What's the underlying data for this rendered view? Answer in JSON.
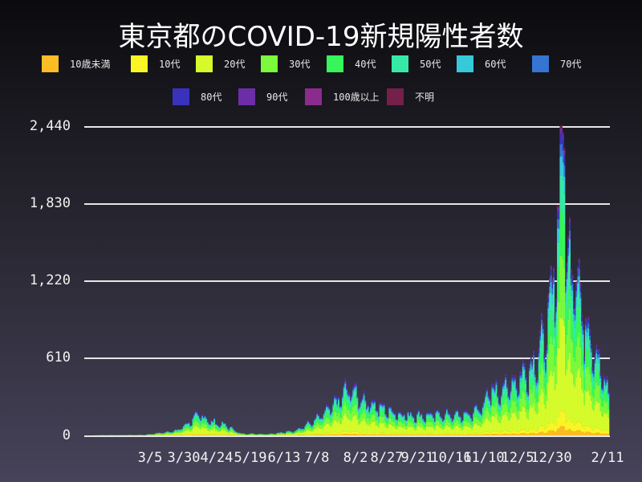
{
  "title": "東京都のCOVID-19新規陽性者数",
  "legend": [
    {
      "label": "10歳未満",
      "color": "#fbbc25"
    },
    {
      "label": "10代",
      "color": "#fbf526"
    },
    {
      "label": "20代",
      "color": "#d6fb2b"
    },
    {
      "label": "30代",
      "color": "#7cf93a"
    },
    {
      "label": "40代",
      "color": "#36f65b"
    },
    {
      "label": "50代",
      "color": "#36eaa6"
    },
    {
      "label": "60代",
      "color": "#36c9da"
    },
    {
      "label": "70代",
      "color": "#3575d1"
    },
    {
      "label": "80代",
      "color": "#3a32bd"
    },
    {
      "label": "90代",
      "color": "#6c2ea8"
    },
    {
      "label": "100歳以上",
      "color": "#8c2b8e"
    },
    {
      "label": "不明",
      "color": "#74204a"
    }
  ],
  "y_ticks": [
    "2,440",
    "1,830",
    "1,220",
    "610",
    "0"
  ],
  "x_ticks": [
    "3/5",
    "3/30",
    "4/24",
    "5/19",
    "6/13",
    "7/8",
    "8/2",
    "8/27",
    "9/21",
    "10/16",
    "11/10",
    "12/5",
    "12/30",
    "2/11"
  ],
  "chart_data": {
    "type": "bar",
    "stacked": true,
    "title": "東京都のCOVID-19新規陽性者数",
    "xlabel": "",
    "ylabel": "",
    "ylim": [
      0,
      2440
    ],
    "y_ticks": [
      0,
      610,
      1220,
      1830,
      2440
    ],
    "x_tick_labels": [
      "3/5",
      "3/30",
      "4/24",
      "5/19",
      "6/13",
      "7/8",
      "8/2",
      "8/27",
      "9/21",
      "10/16",
      "11/10",
      "12/5",
      "12/30",
      "2/11"
    ],
    "x_range": [
      "2020-01-24",
      "2021-02-11"
    ],
    "legend_position": "top",
    "grid": "horizontal",
    "series_names": [
      "10歳未満",
      "10代",
      "20代",
      "30代",
      "40代",
      "50代",
      "60代",
      "70代",
      "80代",
      "90代",
      "100歳以上",
      "不明"
    ],
    "weekly_total_samples": [
      {
        "week_start": "2020-03-01",
        "approx_daily_peak": 10
      },
      {
        "week_start": "2020-03-29",
        "approx_daily_peak": 143
      },
      {
        "week_start": "2020-04-12",
        "approx_daily_peak": 206
      },
      {
        "week_start": "2020-05-10",
        "approx_daily_peak": 30
      },
      {
        "week_start": "2020-06-28",
        "approx_daily_peak": 130
      },
      {
        "week_start": "2020-07-26",
        "approx_daily_peak": 472
      },
      {
        "week_start": "2020-08-23",
        "approx_daily_peak": 250
      },
      {
        "week_start": "2020-09-20",
        "approx_daily_peak": 230
      },
      {
        "week_start": "2020-10-18",
        "approx_daily_peak": 230
      },
      {
        "week_start": "2020-11-15",
        "approx_daily_peak": 530
      },
      {
        "week_start": "2020-12-13",
        "approx_daily_peak": 820
      },
      {
        "week_start": "2020-12-27",
        "approx_daily_peak": 1337
      },
      {
        "week_start": "2021-01-03",
        "approx_daily_peak": 2447
      },
      {
        "week_start": "2021-01-10",
        "approx_daily_peak": 1810
      },
      {
        "week_start": "2021-01-17",
        "approx_daily_peak": 1240
      },
      {
        "week_start": "2021-01-24",
        "approx_daily_peak": 1070
      },
      {
        "week_start": "2021-01-31",
        "approx_daily_peak": 700
      },
      {
        "week_start": "2021-02-07",
        "approx_daily_peak": 430
      }
    ]
  }
}
